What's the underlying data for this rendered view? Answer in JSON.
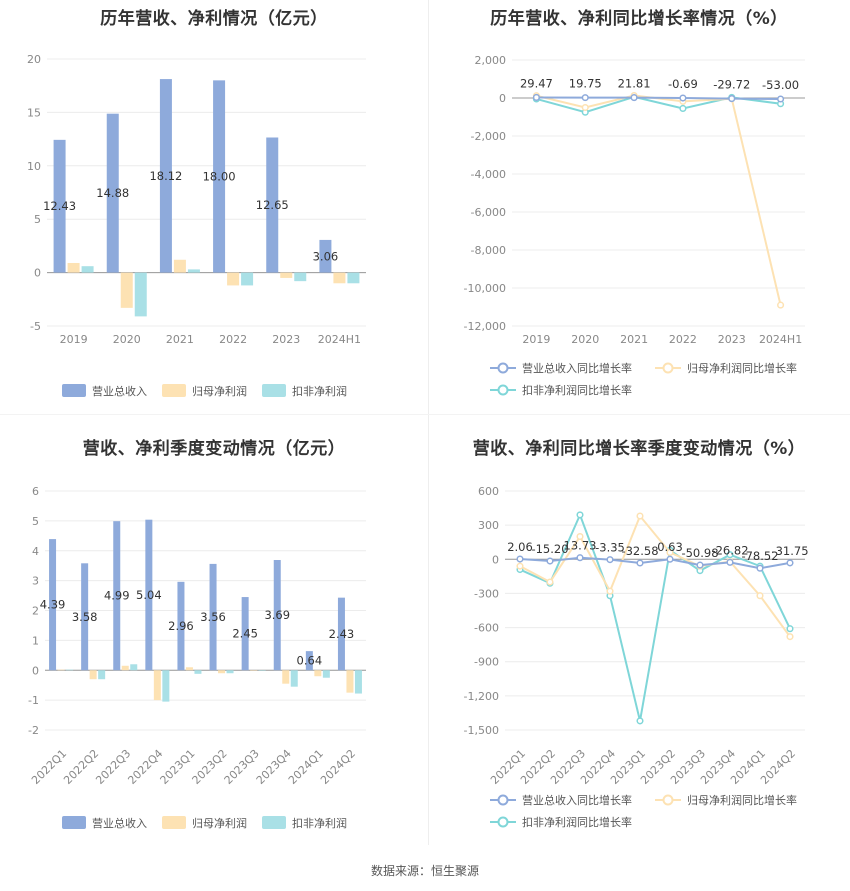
{
  "source_text": "数据来源：恒生聚源",
  "colors": {
    "revenue": "#8eaadb",
    "net_profit": "#fde2b3",
    "deducted": "#a9e0e6",
    "line_rev": "#8eaadb",
    "line_np": "#fde2b3",
    "line_ded": "#7fd6d8"
  },
  "chart_data": [
    {
      "type": "bar",
      "title": "历年营收、净利情况（亿元）",
      "categories": [
        "2019",
        "2020",
        "2021",
        "2022",
        "2023",
        "2024H1"
      ],
      "ylim": [
        -5,
        20
      ],
      "yticks": [
        -5,
        0,
        5,
        10,
        15,
        20
      ],
      "series": [
        {
          "name": "营业总收入",
          "values": [
            12.43,
            14.88,
            18.12,
            18.0,
            12.65,
            3.06
          ],
          "labels": [
            "12.43",
            "14.88",
            "18.12",
            "18.00",
            "12.65",
            "3.06"
          ]
        },
        {
          "name": "归母净利润",
          "values": [
            0.9,
            -3.3,
            1.2,
            -1.2,
            -0.5,
            -1.0
          ]
        },
        {
          "name": "扣非净利润",
          "values": [
            0.6,
            -4.1,
            0.3,
            -1.2,
            -0.8,
            -1.0
          ]
        }
      ],
      "legend": "bottom"
    },
    {
      "type": "line",
      "title": "历年营收、净利同比增长率情况（%）",
      "categories": [
        "2019",
        "2020",
        "2021",
        "2022",
        "2023",
        "2024H1"
      ],
      "ylim": [
        -12000,
        2000
      ],
      "yticks": [
        -12000,
        -10000,
        -8000,
        -6000,
        -4000,
        -2000,
        0,
        2000
      ],
      "ytick_labels": [
        "-12,000",
        "-10,000",
        "-8,000",
        "-6,000",
        "-4,000",
        "-2,000",
        "0",
        "2,000"
      ],
      "series": [
        {
          "name": "营业总收入同比增长率",
          "values": [
            29.47,
            19.75,
            21.81,
            -0.69,
            -29.72,
            -53.0
          ],
          "labels": [
            "29.47",
            "19.75",
            "21.81",
            "-0.69",
            "-29.72",
            "-53.00"
          ]
        },
        {
          "name": "归母净利润同比增长率",
          "values": [
            120,
            -500,
            130,
            -180,
            -40,
            -10900
          ]
        },
        {
          "name": "扣非净利润同比增长率",
          "values": [
            -50,
            -750,
            60,
            -550,
            30,
            -300
          ]
        }
      ],
      "legend": "bottom"
    },
    {
      "type": "bar",
      "title": "营收、净利季度变动情况（亿元）",
      "categories": [
        "2022Q1",
        "2022Q2",
        "2022Q3",
        "2022Q4",
        "2023Q1",
        "2023Q2",
        "2023Q3",
        "2023Q4",
        "2024Q1",
        "2024Q2"
      ],
      "ylim": [
        -2,
        6
      ],
      "yticks": [
        -2,
        -1,
        0,
        1,
        2,
        3,
        4,
        5,
        6
      ],
      "series": [
        {
          "name": "营业总收入",
          "values": [
            4.39,
            3.58,
            4.99,
            5.04,
            2.96,
            3.56,
            2.45,
            3.69,
            0.64,
            2.43
          ],
          "labels": [
            "4.39",
            "3.58",
            "4.99",
            "5.04",
            "2.96",
            "3.56",
            "2.45",
            "3.69",
            "0.64",
            "2.43"
          ]
        },
        {
          "name": "归母净利润",
          "values": [
            0.02,
            -0.3,
            0.15,
            -1.0,
            0.1,
            -0.1,
            0.0,
            -0.45,
            -0.2,
            -0.75
          ]
        },
        {
          "name": "扣非净利润",
          "values": [
            0.02,
            -0.3,
            0.2,
            -1.05,
            -0.12,
            -0.1,
            0.0,
            -0.55,
            -0.25,
            -0.78
          ]
        }
      ],
      "legend": "bottom"
    },
    {
      "type": "line",
      "title": "营收、净利同比增长率季度变动情况（%）",
      "categories": [
        "2022Q1",
        "2022Q2",
        "2022Q3",
        "2022Q4",
        "2023Q1",
        "2023Q2",
        "2023Q3",
        "2023Q4",
        "2024Q1",
        "2024Q2"
      ],
      "ylim": [
        -1500,
        600
      ],
      "yticks": [
        -1500,
        -1200,
        -900,
        -600,
        -300,
        0,
        300,
        600
      ],
      "ytick_labels": [
        "-1,500",
        "-1,200",
        "-900",
        "-600",
        "-300",
        "0",
        "300",
        "600"
      ],
      "series": [
        {
          "name": "营业总收入同比增长率",
          "values": [
            2.06,
            -15.2,
            13.73,
            -3.35,
            -32.58,
            0.63,
            -50.98,
            -26.82,
            -78.52,
            -31.75
          ],
          "labels": [
            "2.06",
            "-15.20",
            "13.73",
            "-3.35",
            "-32.58",
            "0.63",
            "-50.98",
            "-26.82",
            "-78.52",
            "-31.75"
          ]
        },
        {
          "name": "归母净利润同比增长率",
          "values": [
            -60,
            -200,
            200,
            -280,
            380,
            60,
            -60,
            -20,
            -320,
            -680
          ]
        },
        {
          "name": "扣非净利润同比增长率",
          "values": [
            -90,
            -210,
            390,
            -320,
            -1420,
            80,
            -100,
            40,
            -60,
            -610
          ]
        }
      ],
      "legend": "bottom"
    }
  ]
}
